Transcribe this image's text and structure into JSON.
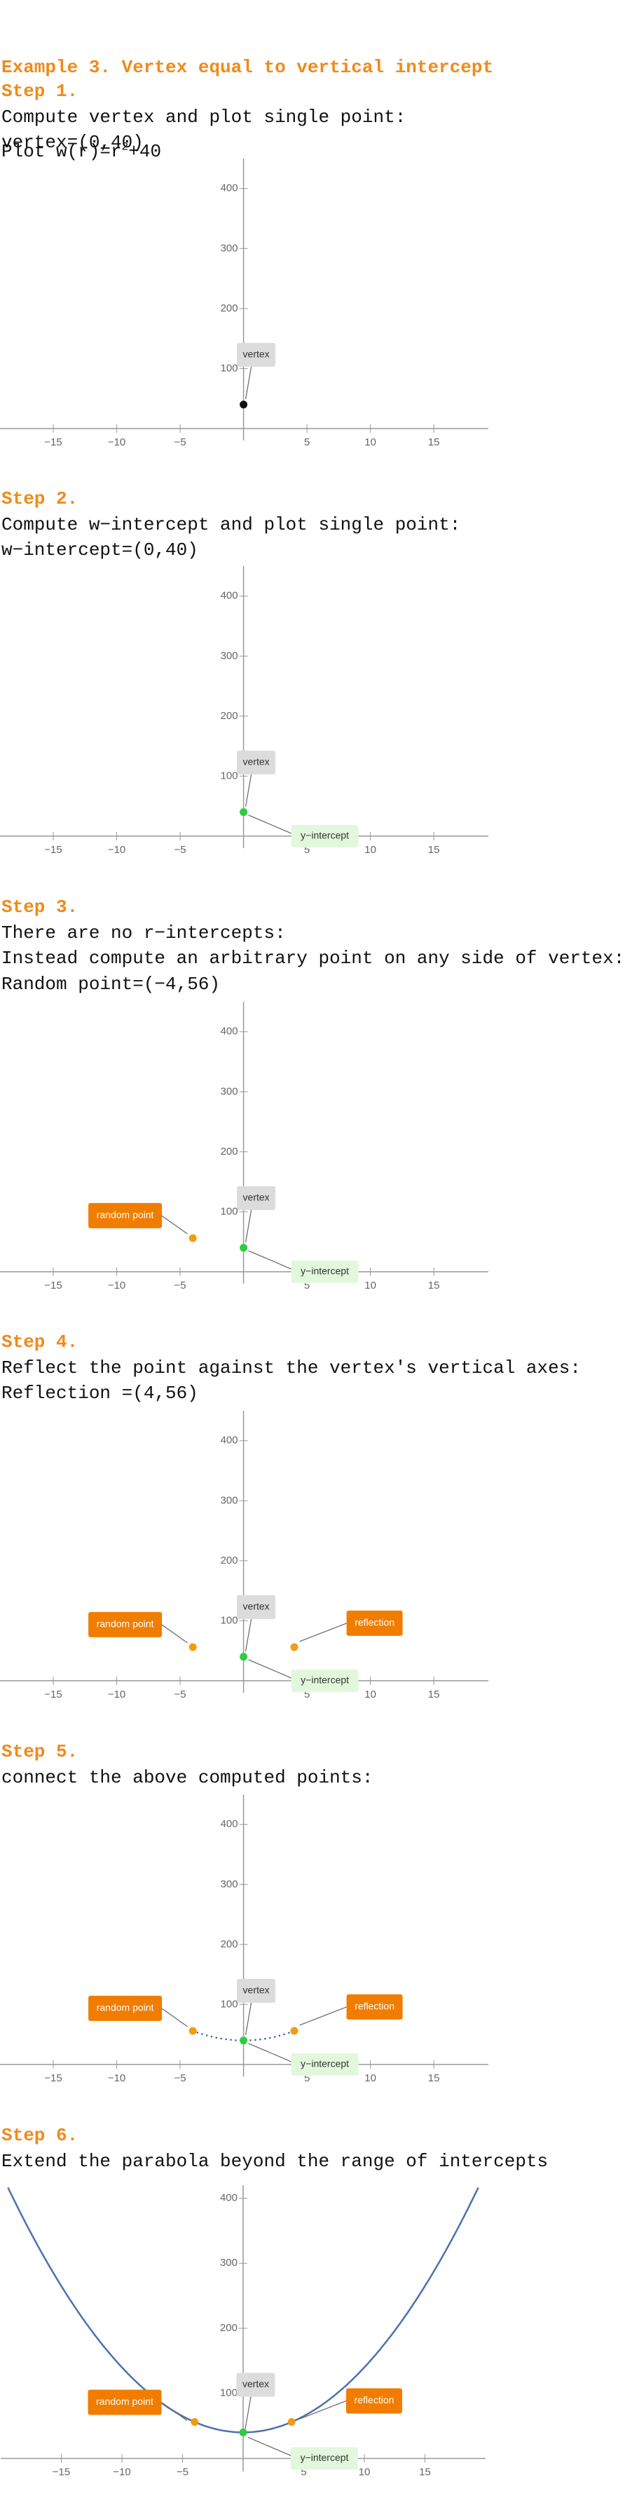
{
  "header": {
    "title": "Example 3. Vertex equal to vertical intercept",
    "prefix": "Plot w(r)=r",
    "plus": "+"
  },
  "function": {
    "exponent": 2,
    "constant": 40
  },
  "steps": [
    {
      "heading": "Step 1.",
      "lines": [
        "Compute vertex and plot single point:",
        "vertex=(0,40)"
      ]
    },
    {
      "heading": "Step 2.",
      "lines": [
        "Compute w−intercept and plot single point:",
        "w−intercept=(0,40)"
      ]
    },
    {
      "heading": "Step 3.",
      "lines": [
        "There are no r−intercepts:",
        "Instead compute an arbitrary point on any side of vertex:",
        "Random point=(−4,56)"
      ]
    },
    {
      "heading": "Step 4.",
      "lines": [
        "Reflect the point against the vertex's vertical axes:",
        "Reflection =(4,56)"
      ]
    },
    {
      "heading": "Step 5.",
      "lines": [
        "connect the above computed points:"
      ]
    },
    {
      "heading": "Step 6.",
      "lines": [
        "Extend the parabola beyond the range of intercepts"
      ]
    }
  ],
  "chart_data": [
    {
      "type": "scatter",
      "xlim": [
        -19.2,
        19.3
      ],
      "ylim": [
        -20,
        450
      ],
      "xticks": [
        {
          "value": -15,
          "label": "−15"
        },
        {
          "value": -10,
          "label": "−10"
        },
        {
          "value": -5,
          "label": "−5"
        },
        5,
        10,
        15
      ],
      "yticks": [
        100,
        200,
        300,
        400
      ],
      "points": [
        {
          "x": 0,
          "y": 40,
          "color": "#111111"
        }
      ],
      "annotations": [
        {
          "text": "vertex",
          "color": "#dcdcdc",
          "text_color": "#333333"
        }
      ]
    },
    {
      "type": "scatter",
      "xlim": [
        -19.2,
        19.3
      ],
      "ylim": [
        -20,
        450
      ],
      "xticks": [
        {
          "value": -15,
          "label": "−15"
        },
        {
          "value": -10,
          "label": "−10"
        },
        {
          "value": -5,
          "label": "−5"
        },
        5,
        10,
        15
      ],
      "yticks": [
        100,
        200,
        300,
        400
      ],
      "points": [
        {
          "x": 0,
          "y": 40,
          "color": "#2ecc40"
        }
      ],
      "annotations": [
        {
          "text": "vertex",
          "color": "#dcdcdc",
          "text_color": "#333333"
        },
        {
          "text": "y−intercept",
          "color": "#e2f8dc",
          "text_color": "#333333"
        }
      ]
    },
    {
      "type": "scatter",
      "xlim": [
        -19.2,
        19.3
      ],
      "ylim": [
        -20,
        450
      ],
      "xticks": [
        {
          "value": -15,
          "label": "−15"
        },
        {
          "value": -10,
          "label": "−10"
        },
        {
          "value": -5,
          "label": "−5"
        },
        5,
        10,
        15
      ],
      "yticks": [
        100,
        200,
        300,
        400
      ],
      "points": [
        {
          "x": -4,
          "y": 56,
          "color": "#f39c12"
        },
        {
          "x": 0,
          "y": 40,
          "color": "#2ecc40"
        }
      ],
      "annotations": [
        {
          "text": "vertex",
          "color": "#dcdcdc",
          "text_color": "#333333"
        },
        {
          "text": "y−intercept",
          "color": "#e2f8dc",
          "text_color": "#333333"
        },
        {
          "text": "random point",
          "color": "#f07d00",
          "text_color": "#ffffff"
        }
      ]
    },
    {
      "type": "scatter",
      "xlim": [
        -19.2,
        19.3
      ],
      "ylim": [
        -20,
        450
      ],
      "xticks": [
        {
          "value": -15,
          "label": "−15"
        },
        {
          "value": -10,
          "label": "−10"
        },
        {
          "value": -5,
          "label": "−5"
        },
        5,
        10,
        15
      ],
      "yticks": [
        100,
        200,
        300,
        400
      ],
      "points": [
        {
          "x": -4,
          "y": 56,
          "color": "#f39c12"
        },
        {
          "x": 0,
          "y": 40,
          "color": "#2ecc40"
        },
        {
          "x": 4,
          "y": 56,
          "color": "#f39c12"
        }
      ],
      "annotations": [
        {
          "text": "vertex",
          "color": "#dcdcdc",
          "text_color": "#333333"
        },
        {
          "text": "y−intercept",
          "color": "#e2f8dc",
          "text_color": "#333333"
        },
        {
          "text": "random point",
          "color": "#f07d00",
          "text_color": "#ffffff"
        },
        {
          "text": "reflection",
          "color": "#f07d00",
          "text_color": "#ffffff"
        }
      ]
    },
    {
      "type": "scatter",
      "xlim": [
        -19.2,
        19.3
      ],
      "ylim": [
        -20,
        450
      ],
      "xticks": [
        {
          "value": -15,
          "label": "−15"
        },
        {
          "value": -10,
          "label": "−10"
        },
        {
          "value": -5,
          "label": "−5"
        },
        5,
        10,
        15
      ],
      "yticks": [
        100,
        200,
        300,
        400
      ],
      "connect": "dotted",
      "line_color": "#1f5fa0",
      "points": [
        {
          "x": -4,
          "y": 56,
          "color": "#f39c12"
        },
        {
          "x": 0,
          "y": 40,
          "color": "#2ecc40"
        },
        {
          "x": 4,
          "y": 56,
          "color": "#f39c12"
        }
      ],
      "annotations": [
        {
          "text": "vertex",
          "color": "#dcdcdc",
          "text_color": "#333333"
        },
        {
          "text": "y−intercept",
          "color": "#e2f8dc",
          "text_color": "#333333"
        },
        {
          "text": "random point",
          "color": "#f07d00",
          "text_color": "#ffffff"
        },
        {
          "text": "reflection",
          "color": "#f07d00",
          "text_color": "#ffffff"
        }
      ]
    },
    {
      "type": "scatter",
      "xlim": [
        -20,
        20
      ],
      "ylim": [
        -20,
        420
      ],
      "xticks": [
        {
          "value": -15,
          "label": "−15"
        },
        {
          "value": -10,
          "label": "−10"
        },
        {
          "value": -5,
          "label": "−5"
        },
        5,
        10,
        15
      ],
      "yticks": [
        100,
        200,
        300,
        400
      ],
      "connect": "solid",
      "line_color": "#4a72b0",
      "points": [
        {
          "x": -4,
          "y": 56,
          "color": "#f39c12"
        },
        {
          "x": 0,
          "y": 40,
          "color": "#2ecc40"
        },
        {
          "x": 4,
          "y": 56,
          "color": "#f39c12"
        }
      ],
      "annotations": [
        {
          "text": "vertex",
          "color": "#dcdcdc",
          "text_color": "#333333"
        },
        {
          "text": "y−intercept",
          "color": "#e2f8dc",
          "text_color": "#333333"
        },
        {
          "text": "random point",
          "color": "#f07d00",
          "text_color": "#ffffff"
        },
        {
          "text": "reflection",
          "color": "#f07d00",
          "text_color": "#ffffff"
        }
      ]
    }
  ]
}
